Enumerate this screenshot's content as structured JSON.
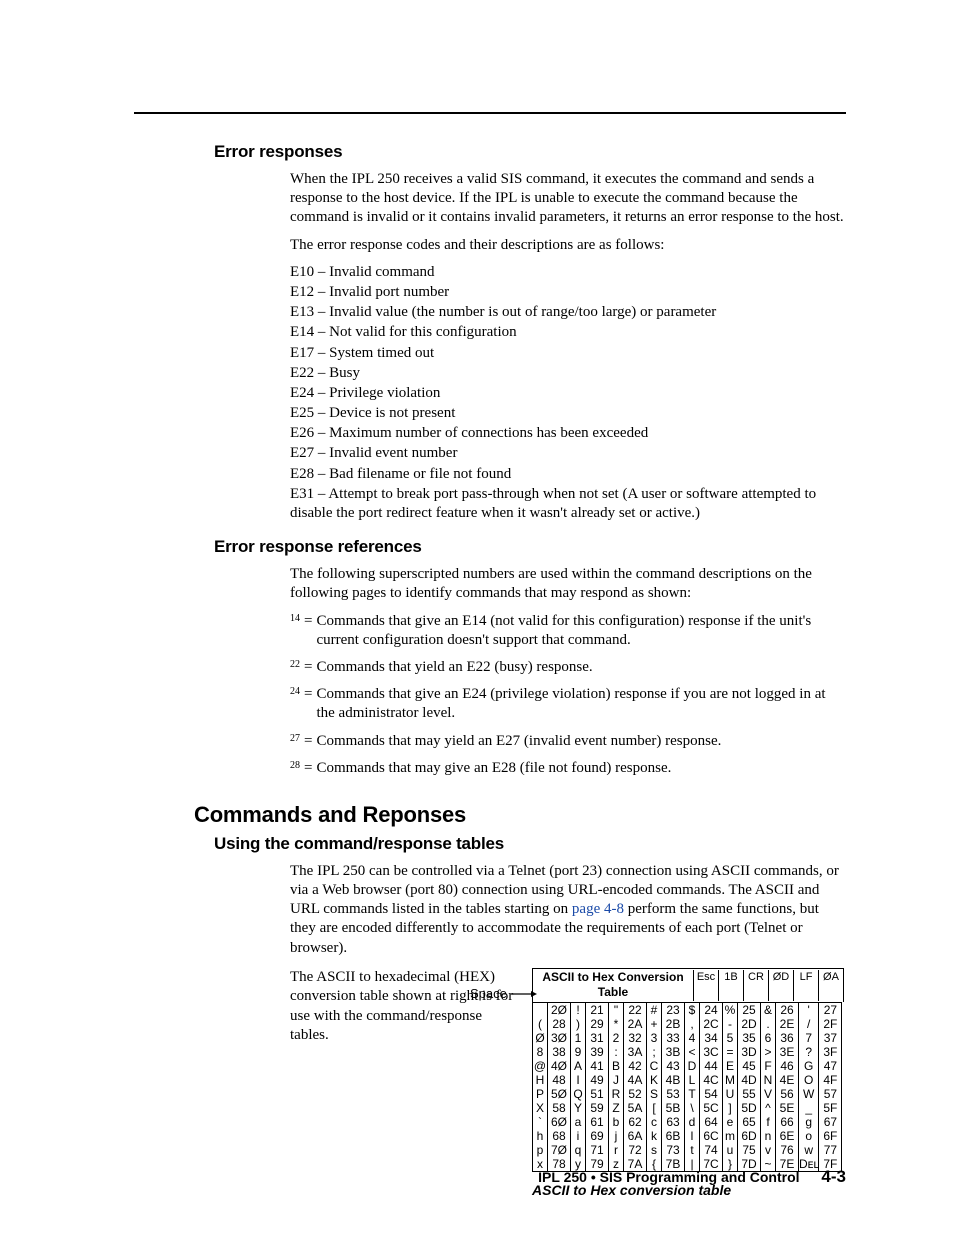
{
  "headings": {
    "h2a": "Error responses",
    "h2b": "Error response references",
    "h1": "Commands and Reponses",
    "h2c": "Using the command/response tables"
  },
  "error_intro": "When the IPL 250 receives a valid SIS command, it executes the command and sends a response to the host device.  If the IPL is unable to execute the command because the command is invalid or it contains invalid parameters, it returns an error response to the host.",
  "error_codes_lead": "The error response codes and their descriptions are as follows:",
  "error_codes": [
    "E10 – Invalid command",
    "E12 – Invalid port number",
    "E13 – Invalid value (the number is out of range/too large) or parameter",
    "E14 – Not valid for this configuration",
    "E17 – System timed out",
    "E22 – Busy",
    "E24 – Privilege violation",
    "E25 – Device is not present",
    "E26 – Maximum number of connections has been exceeded",
    "E27 – Invalid event number",
    "E28 – Bad filename or file not found",
    "E31 – Attempt to break port pass-through when not set (A user or software attempted to disable the port redirect feature when it wasn't already set or active.)"
  ],
  "refs_lead": "The following superscripted numbers are used within the command descriptions on the following pages to identify commands that may respond as shown:",
  "refs": [
    {
      "sup": "14",
      "text": "Commands that give an E14 (not valid for this configuration) response if the unit's current configuration doesn't support that command."
    },
    {
      "sup": "22",
      "text": "Commands that yield an E22 (busy) response."
    },
    {
      "sup": "24",
      "text": "Commands that give an E24 (privilege violation) response if you are not logged in at the administrator level."
    },
    {
      "sup": "27",
      "text": "Commands that may yield an E27 (invalid event number) response."
    },
    {
      "sup": "28",
      "text": "Commands that may give an E28 (file not found) response."
    }
  ],
  "cmd_intro_a": "The IPL 250 can be controlled via a Telnet (port 23) connection using ASCII commands, or via a Web browser (port 80) connection using URL-encoded commands.  The ASCII and URL commands listed in the tables starting on ",
  "cmd_intro_link": "page 4-8",
  "cmd_intro_b": " perform the same functions, but they are encoded differently to accommodate the requirements of each port (Telnet or browser).",
  "conv_left": "The ASCII to hexadecimal (HEX) conversion table shown at right is for use with the command/response tables.",
  "space_label": "Space",
  "hex": {
    "title": "ASCII to Hex  Conversion Table",
    "header_extra": [
      {
        "ch": "Esc",
        "hx": "1B"
      },
      {
        "ch": "CR",
        "hx": "ØD"
      },
      {
        "ch": "LF",
        "hx": "ØA"
      }
    ],
    "rows": [
      [
        [
          " ",
          "2Ø"
        ],
        [
          "!",
          "21"
        ],
        [
          "\"",
          "22"
        ],
        [
          "#",
          "23"
        ],
        [
          "$",
          "24"
        ],
        [
          "%",
          "25"
        ],
        [
          "&",
          "26"
        ],
        [
          "'",
          "27"
        ]
      ],
      [
        [
          "(",
          "28"
        ],
        [
          ")",
          "29"
        ],
        [
          "*",
          "2A"
        ],
        [
          "+",
          "2B"
        ],
        [
          ",",
          "2C"
        ],
        [
          "-",
          "2D"
        ],
        [
          ".",
          "2E"
        ],
        [
          "/",
          "2F"
        ]
      ],
      [
        [
          "Ø",
          "3Ø"
        ],
        [
          "1",
          "31"
        ],
        [
          "2",
          "32"
        ],
        [
          "3",
          "33"
        ],
        [
          "4",
          "34"
        ],
        [
          "5",
          "35"
        ],
        [
          "6",
          "36"
        ],
        [
          "7",
          "37"
        ]
      ],
      [
        [
          "8",
          "38"
        ],
        [
          "9",
          "39"
        ],
        [
          ":",
          "3A"
        ],
        [
          ";",
          "3B"
        ],
        [
          "<",
          "3C"
        ],
        [
          "=",
          "3D"
        ],
        [
          ">",
          "3E"
        ],
        [
          "?",
          "3F"
        ]
      ],
      [
        [
          "@",
          "4Ø"
        ],
        [
          "A",
          "41"
        ],
        [
          "B",
          "42"
        ],
        [
          "C",
          "43"
        ],
        [
          "D",
          "44"
        ],
        [
          "E",
          "45"
        ],
        [
          "F",
          "46"
        ],
        [
          "G",
          "47"
        ]
      ],
      [
        [
          "H",
          "48"
        ],
        [
          "I",
          "49"
        ],
        [
          "J",
          "4A"
        ],
        [
          "K",
          "4B"
        ],
        [
          "L",
          "4C"
        ],
        [
          "M",
          "4D"
        ],
        [
          "N",
          "4E"
        ],
        [
          "O",
          "4F"
        ]
      ],
      [
        [
          "P",
          "5Ø"
        ],
        [
          "Q",
          "51"
        ],
        [
          "R",
          "52"
        ],
        [
          "S",
          "53"
        ],
        [
          "T",
          "54"
        ],
        [
          "U",
          "55"
        ],
        [
          "V",
          "56"
        ],
        [
          "W",
          "57"
        ]
      ],
      [
        [
          "X",
          "58"
        ],
        [
          "Y",
          "59"
        ],
        [
          "Z",
          "5A"
        ],
        [
          "[",
          "5B"
        ],
        [
          "\\",
          "5C"
        ],
        [
          "]",
          "5D"
        ],
        [
          "^",
          "5E"
        ],
        [
          "_",
          "5F"
        ]
      ],
      [
        [
          "`",
          "6Ø"
        ],
        [
          "a",
          "61"
        ],
        [
          "b",
          "62"
        ],
        [
          "c",
          "63"
        ],
        [
          "d",
          "64"
        ],
        [
          "e",
          "65"
        ],
        [
          "f",
          "66"
        ],
        [
          "g",
          "67"
        ]
      ],
      [
        [
          "h",
          "68"
        ],
        [
          "i",
          "69"
        ],
        [
          "j",
          "6A"
        ],
        [
          "k",
          "6B"
        ],
        [
          "l",
          "6C"
        ],
        [
          "m",
          "6D"
        ],
        [
          "n",
          "6E"
        ],
        [
          "o",
          "6F"
        ]
      ],
      [
        [
          "p",
          "7Ø"
        ],
        [
          "q",
          "71"
        ],
        [
          "r",
          "72"
        ],
        [
          "s",
          "73"
        ],
        [
          "t",
          "74"
        ],
        [
          "u",
          "75"
        ],
        [
          "v",
          "76"
        ],
        [
          "w",
          "77"
        ]
      ],
      [
        [
          "x",
          "78"
        ],
        [
          "y",
          "79"
        ],
        [
          "z",
          "7A"
        ],
        [
          "{",
          "7B"
        ],
        [
          "|",
          "7C"
        ],
        [
          "}",
          "7D"
        ],
        [
          "~",
          "7E"
        ],
        [
          "Dᴇʟ",
          "7F"
        ]
      ]
    ],
    "caption": "ASCII to Hex conversion table"
  },
  "footer": {
    "product": "IPL 250 • SIS Programming and Control",
    "page": "4-3"
  }
}
